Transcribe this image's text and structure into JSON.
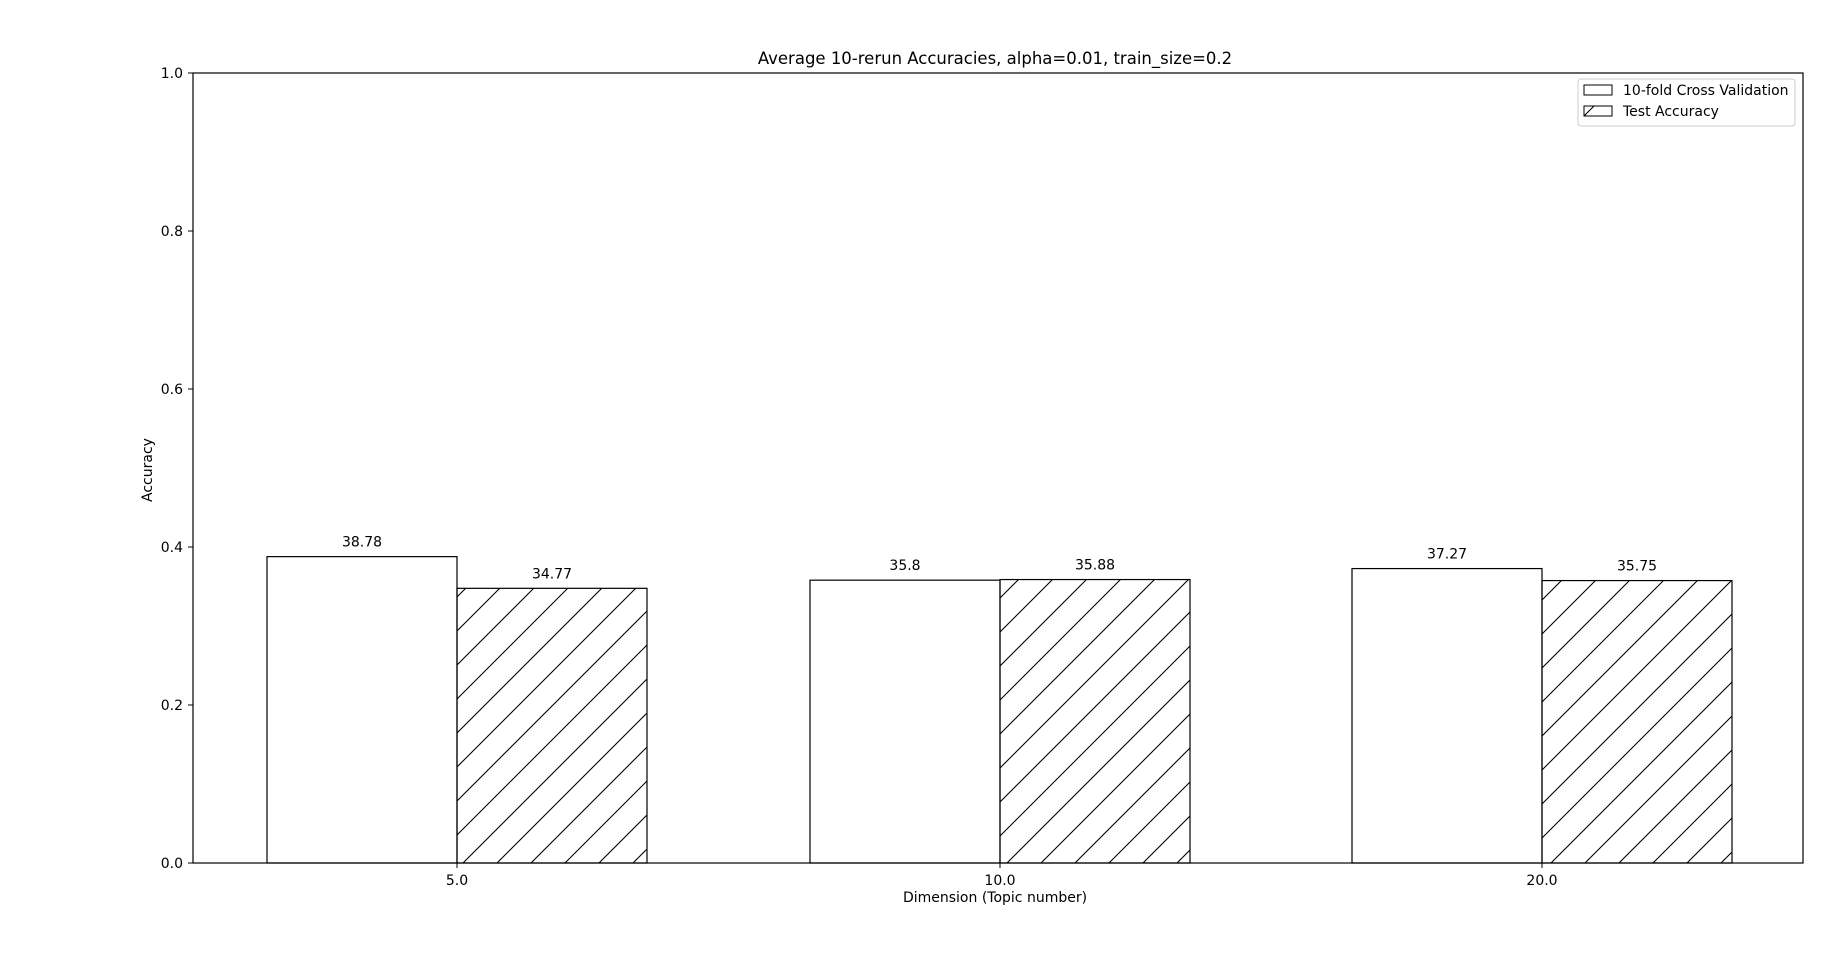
{
  "chart_data": {
    "type": "bar",
    "title": "Average 10-rerun Accuracies, alpha=0.01, train_size=0.2",
    "xlabel": "Dimension (Topic number)",
    "ylabel": "Accuracy",
    "categories": [
      "5.0",
      "10.0",
      "20.0"
    ],
    "ylim": [
      0,
      1.0
    ],
    "yticks": [
      "0.0",
      "0.2",
      "0.4",
      "0.6",
      "0.8",
      "1.0"
    ],
    "series": [
      {
        "name": "10-fold Cross Validation",
        "values": [
          0.3878,
          0.358,
          0.3727
        ],
        "labels": [
          "38.78",
          "35.8",
          "37.27"
        ],
        "pattern": "none"
      },
      {
        "name": "Test Accuracy",
        "values": [
          0.3477,
          0.3588,
          0.3575
        ],
        "labels": [
          "34.77",
          "35.88",
          "35.75"
        ],
        "pattern": "diagonal-hatch"
      }
    ],
    "legend_position": "top-right",
    "grid": false,
    "colors": {
      "bar_fill": "#ffffff",
      "bar_edge": "#000000",
      "hatch": "#000000"
    }
  }
}
